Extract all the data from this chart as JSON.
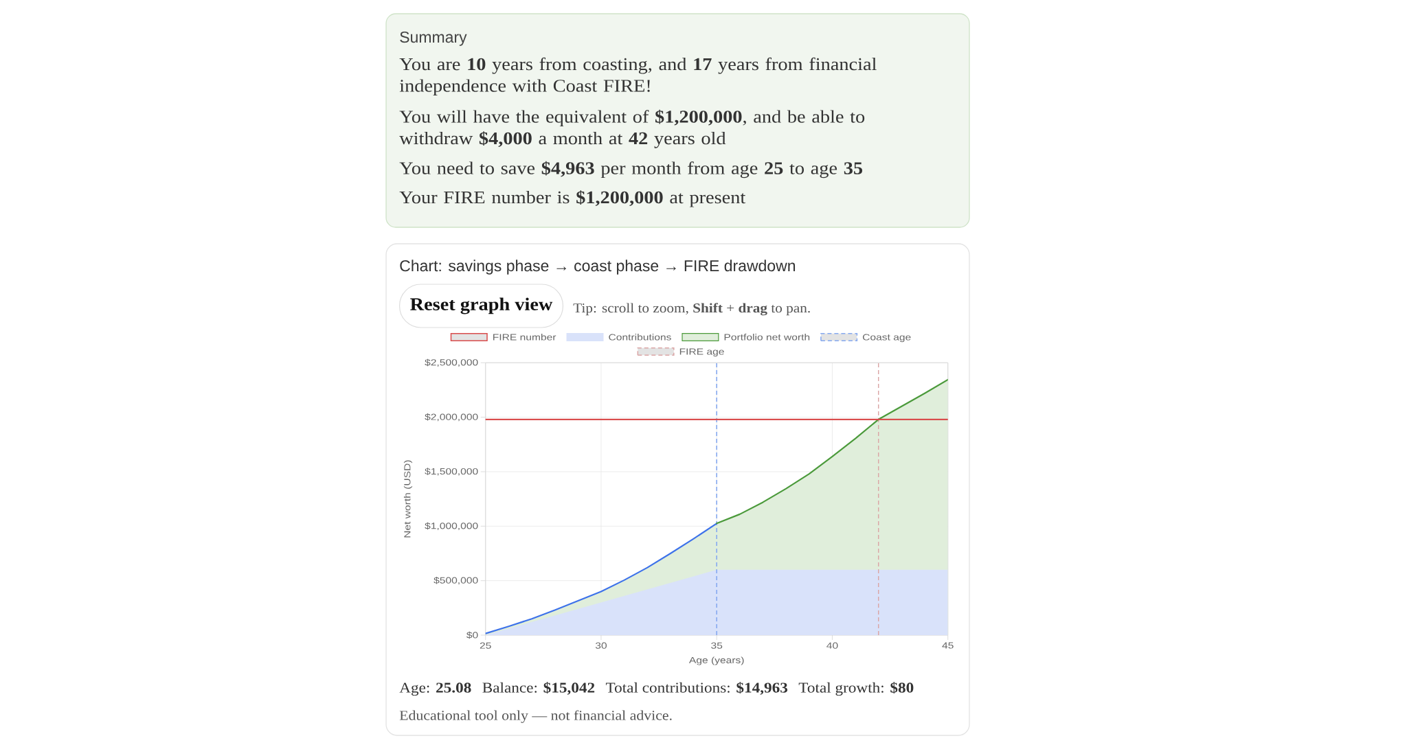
{
  "chart_data": {
    "type": "line",
    "title": "Chart: savings phase → coast phase → FIRE drawdown",
    "xlabel": "Age (years)",
    "ylabel": "Net worth (USD)",
    "annotations": [
      "Summary",
      "You are **10** years from coasting, and **17** years from financial independence with Coast FIRE!",
      "You will have the equivalent of **$1,200,000**, and be able to withdraw **$4,000** a month at **42** years old",
      "You need to save **$4,963** per month from age **25** to age **35**",
      "Your FIRE number is **$1,200,000** at present",
      "Reset graph view",
      "Tip: scroll to zoom, **Shift** + **drag** to pan.",
      "Age: **25.08**",
      "Balance: **$15,042**",
      "Total contributions: **$14,963**",
      "Total growth: **$80**",
      "Educational tool only — not financial advice."
    ],
    "series": [
      {
        "name": "FIRE number",
        "color": "#d94c4c",
        "x": [
          25,
          45
        ],
        "values": [
          1980000,
          1980000
        ]
      },
      {
        "name": "Contributions",
        "type": "area",
        "color": "#d9e2fa",
        "x": [
          25,
          35,
          45
        ],
        "values": [
          0,
          600000,
          600000
        ]
      },
      {
        "name": "Portfolio net worth",
        "type": "area",
        "color": "#e0eedb",
        "x": [
          25,
          26,
          27,
          28,
          29,
          30,
          31,
          32,
          33,
          34,
          35,
          36,
          37,
          38,
          39,
          40,
          41,
          42,
          43,
          44,
          45
        ],
        "values": [
          15000,
          80000,
          150000,
          230000,
          315000,
          400000,
          505000,
          620000,
          750000,
          885000,
          1025000,
          1110000,
          1220000,
          1345000,
          1480000,
          1640000,
          1805000,
          1980000,
          2100000,
          2220000,
          2345000
        ],
        "colors": [
          "#3d72ea",
          "#3d72ea",
          "#3d72ea",
          "#3d72ea",
          "#3d72ea",
          "#3d72ea",
          "#3d72ea",
          "#3d72ea",
          "#3d72ea",
          "#3d72ea",
          "#3d72ea",
          "#4b9a3b",
          "#4b9a3b",
          "#4b9a3b",
          "#4b9a3b",
          "#4b9a3b",
          "#4b9a3b",
          "#4b9a3b",
          "#4b9a3b",
          "#4b9a3b",
          "#4b9a3b"
        ]
      }
    ],
    "ref_lines": [
      {
        "axis": "x",
        "value": 35,
        "label": "Coast age",
        "color": "#86a9f0",
        "line_style": "dashed"
      },
      {
        "axis": "x",
        "value": 42,
        "label": "FIRE age",
        "color": "#dba6a6",
        "line_style": "dashed"
      }
    ],
    "xlim": [
      25,
      45
    ],
    "ylim": [
      0,
      2500000
    ],
    "xticks": [
      25,
      30,
      35,
      40,
      45
    ],
    "yticks": [
      {
        "value": 0,
        "label": "$0"
      },
      {
        "value": 500000,
        "label": "$500,000"
      },
      {
        "value": 1000000,
        "label": "$1,000,000"
      },
      {
        "value": 1500000,
        "label": "$1,500,000"
      },
      {
        "value": 2000000,
        "label": "$2,000,000"
      },
      {
        "value": 2500000,
        "label": "$2,500,000"
      }
    ],
    "grid": true,
    "legend": "top"
  }
}
